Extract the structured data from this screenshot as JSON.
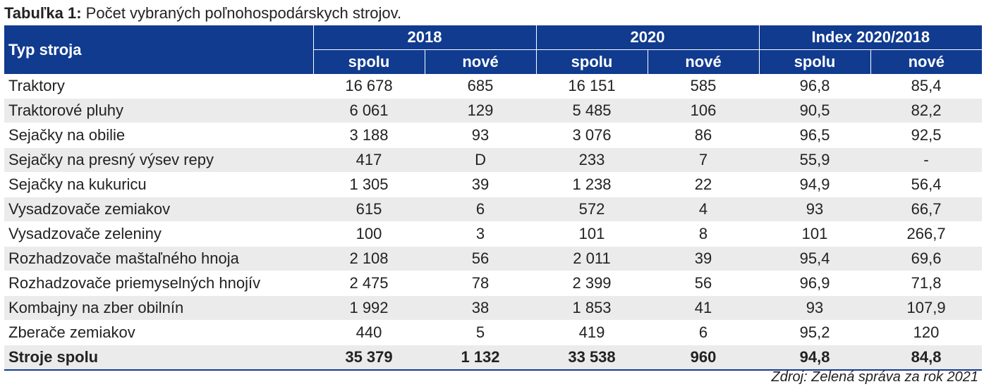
{
  "caption": {
    "lead": "Tabuľka 1:",
    "text": "Počet vybraných poľnohospodárskych strojov."
  },
  "table": {
    "header": {
      "row_label": "Typ stroja",
      "groups": [
        "2018",
        "2020",
        "Index 2020/2018"
      ],
      "subcols": [
        "spolu",
        "nové",
        "spolu",
        "nové",
        "spolu",
        "nové"
      ]
    },
    "rows": [
      {
        "name": "Traktory",
        "cells": [
          "16 678",
          "685",
          "16 151",
          "585",
          "96,8",
          "85,4"
        ]
      },
      {
        "name": "Traktorové pluhy",
        "cells": [
          "6 061",
          "129",
          "5 485",
          "106",
          "90,5",
          "82,2"
        ]
      },
      {
        "name": "Sejačky na obilie",
        "cells": [
          "3 188",
          "93",
          "3 076",
          "86",
          "96,5",
          "92,5"
        ]
      },
      {
        "name": "Sejačky na presný výsev repy",
        "cells": [
          "417",
          "D",
          "233",
          "7",
          "55,9",
          "-"
        ]
      },
      {
        "name": "Sejačky na kukuricu",
        "cells": [
          "1 305",
          "39",
          "1 238",
          "22",
          "94,9",
          "56,4"
        ]
      },
      {
        "name": "Vysadzovače zemiakov",
        "cells": [
          "615",
          "6",
          "572",
          "4",
          "93",
          "66,7"
        ]
      },
      {
        "name": "Vysadzovače zeleniny",
        "cells": [
          "100",
          "3",
          "101",
          "8",
          "101",
          "266,7"
        ]
      },
      {
        "name": "Rozhadzovače maštaľného hnoja",
        "cells": [
          "2 108",
          "56",
          "2 011",
          "39",
          "95,4",
          "69,6"
        ]
      },
      {
        "name": "Rozhadzovače priemyselných hnojív",
        "cells": [
          "2 475",
          "78",
          "2 399",
          "56",
          "96,9",
          "71,8"
        ]
      },
      {
        "name": "Kombajny na zber obilnín",
        "cells": [
          "1 992",
          "38",
          "1 853",
          "41",
          "93",
          "107,9"
        ]
      },
      {
        "name": "Zberače zemiakov",
        "cells": [
          "440",
          "5",
          "419",
          "6",
          "95,2",
          "120"
        ]
      }
    ],
    "total": {
      "name": "Stroje spolu",
      "cells": [
        "35 379",
        "1 132",
        "33 538",
        "960",
        "94,8",
        "84,8"
      ]
    }
  },
  "source": "Zdroj: Zelená správa za rok 2021",
  "colors": {
    "header_bg": "#103b8f",
    "stripe": "#ebebeb"
  }
}
